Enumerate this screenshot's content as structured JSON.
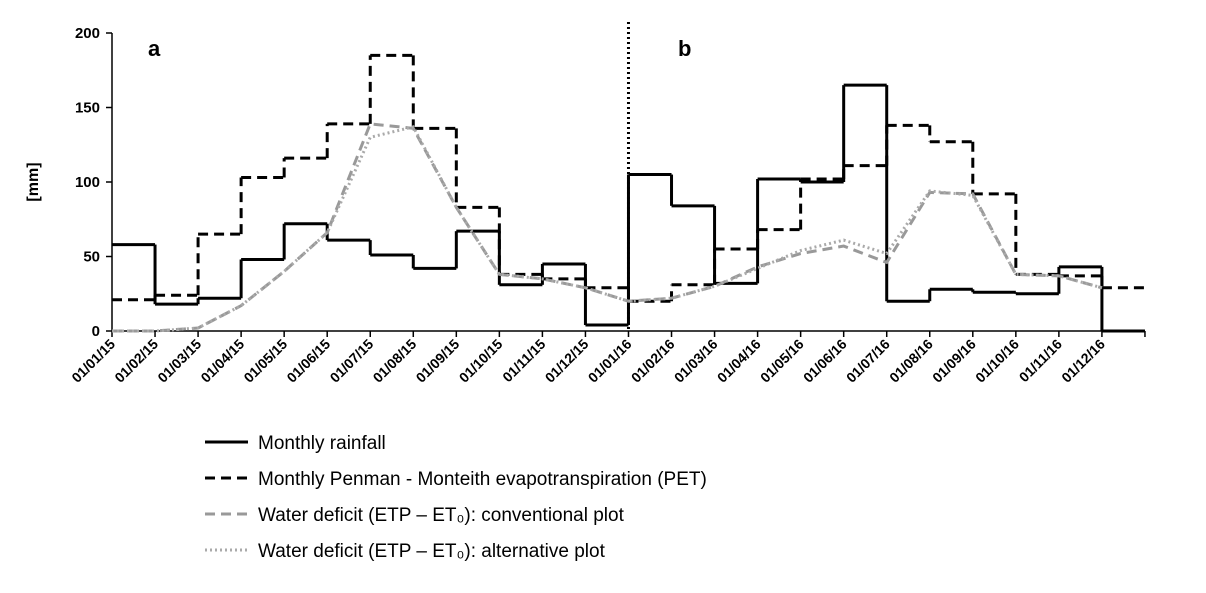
{
  "chart_data": {
    "type": "line",
    "y_label": "[mm]",
    "annotations": [
      "a",
      "b"
    ],
    "divider_index": 12,
    "categories": [
      "01/01/15",
      "01/02/15",
      "01/03/15",
      "01/04/15",
      "01/05/15",
      "01/06/15",
      "01/07/15",
      "01/08/15",
      "01/09/15",
      "01/10/15",
      "01/11/15",
      "01/12/15",
      "01/01/16",
      "01/02/16",
      "01/03/16",
      "01/04/16",
      "01/05/16",
      "01/06/16",
      "01/07/16",
      "01/08/16",
      "01/09/16",
      "01/10/16",
      "01/11/16",
      "01/12/16"
    ],
    "ylim": [
      0,
      200
    ],
    "yticks": [
      0,
      50,
      100,
      150,
      200
    ],
    "series": [
      {
        "name": "Monthly rainfall",
        "color": "#000000",
        "dash": "solid",
        "step": true,
        "values": [
          58,
          18,
          22,
          48,
          72,
          61,
          51,
          42,
          67,
          31,
          45,
          4,
          105,
          84,
          32,
          102,
          100,
          165,
          20,
          28,
          26,
          25,
          43,
          0
        ]
      },
      {
        "name": "Monthly Penman - Monteith evapotranspiration (PET)",
        "color": "#000000",
        "dash": "dashed",
        "step": true,
        "values": [
          21,
          24,
          65,
          103,
          116,
          139,
          185,
          136,
          83,
          38,
          35,
          29,
          20,
          31,
          55,
          68,
          102,
          111,
          138,
          127,
          92,
          38,
          37,
          29
        ]
      },
      {
        "name": "Water deficit (ETP – ET₀): conventional plot",
        "color": "#999999",
        "dash": "dashed",
        "step": false,
        "values": [
          0,
          0,
          2,
          17,
          40,
          66,
          139,
          136,
          83,
          38,
          35,
          29,
          20,
          22,
          30,
          43,
          52,
          57,
          46,
          93,
          92,
          38,
          37,
          29
        ]
      },
      {
        "name": "Water deficit (ETP – ET₀): alternative plot",
        "color": "#aaaaaa",
        "dash": "dotted",
        "step": false,
        "values": [
          0,
          0,
          2,
          17,
          40,
          66,
          130,
          137,
          83,
          38,
          35,
          29,
          20,
          22,
          30,
          42,
          54,
          61,
          52,
          94,
          91,
          38,
          37,
          29
        ]
      }
    ]
  }
}
